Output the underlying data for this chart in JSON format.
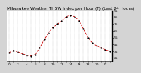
{
  "title": "Milwaukee Weather THSW Index per Hour (F) (Last 24 Hours)",
  "hours": [
    0,
    1,
    2,
    3,
    4,
    5,
    6,
    7,
    8,
    9,
    10,
    11,
    12,
    13,
    14,
    15,
    16,
    17,
    18,
    19,
    20,
    21,
    22,
    23
  ],
  "values": [
    33,
    36,
    34,
    31,
    29,
    28,
    30,
    40,
    52,
    62,
    70,
    75,
    80,
    86,
    88,
    86,
    80,
    68,
    55,
    47,
    43,
    40,
    37,
    35
  ],
  "line_color": "#cc0000",
  "marker_color": "#000000",
  "background_color": "#d4d4d4",
  "plot_bg": "#ffffff",
  "grid_color": "#888888",
  "ylim": [
    20,
    95
  ],
  "ytick_values": [
    25,
    35,
    45,
    55,
    65,
    75,
    85,
    95
  ],
  "title_fontsize": 4.2,
  "tick_fontsize": 3.2,
  "line_width": 0.6,
  "marker_size": 1.2
}
